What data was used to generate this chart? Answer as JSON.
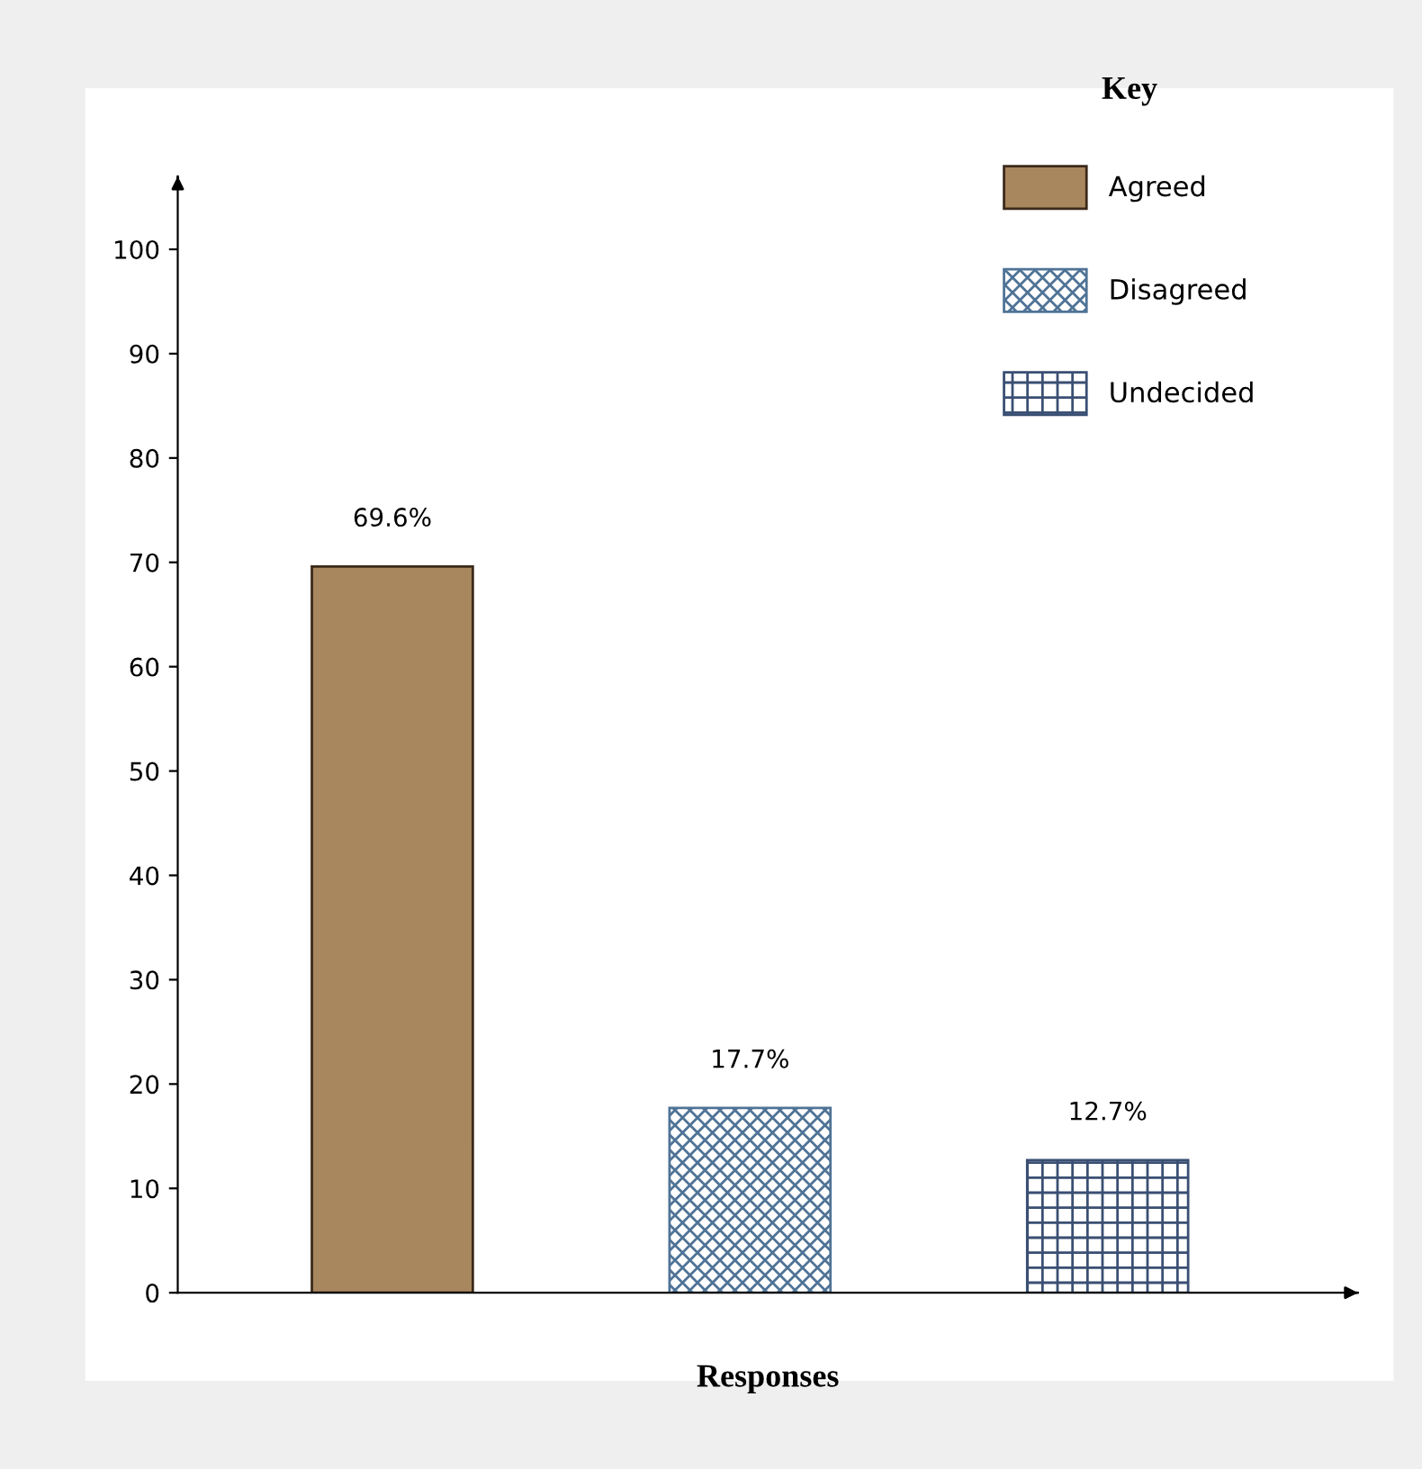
{
  "chart_data": {
    "type": "bar",
    "legend_title": "Key",
    "xlabel": "Responses",
    "categories": [
      null,
      null,
      null
    ],
    "series": [
      {
        "name": "Agreed",
        "color": "#a8865e",
        "values": [
          69.6,
          null,
          null
        ],
        "value_labels": [
          "69.6%",
          null,
          null
        ]
      },
      {
        "name": "Disagreed",
        "color": "#4f7396",
        "values": [
          null,
          17.7,
          null
        ],
        "value_labels": [
          null,
          "17.7%",
          null
        ]
      },
      {
        "name": "Undecided",
        "color": "#3a4f73",
        "values": [
          null,
          null,
          12.7
        ],
        "value_labels": [
          null,
          null,
          "12.7%"
        ]
      }
    ],
    "ylim": [
      0,
      107
    ],
    "yticks": [
      0,
      10,
      20,
      30,
      40,
      50,
      60,
      70,
      80,
      90,
      100
    ],
    "grid": false,
    "legend": "top right"
  }
}
